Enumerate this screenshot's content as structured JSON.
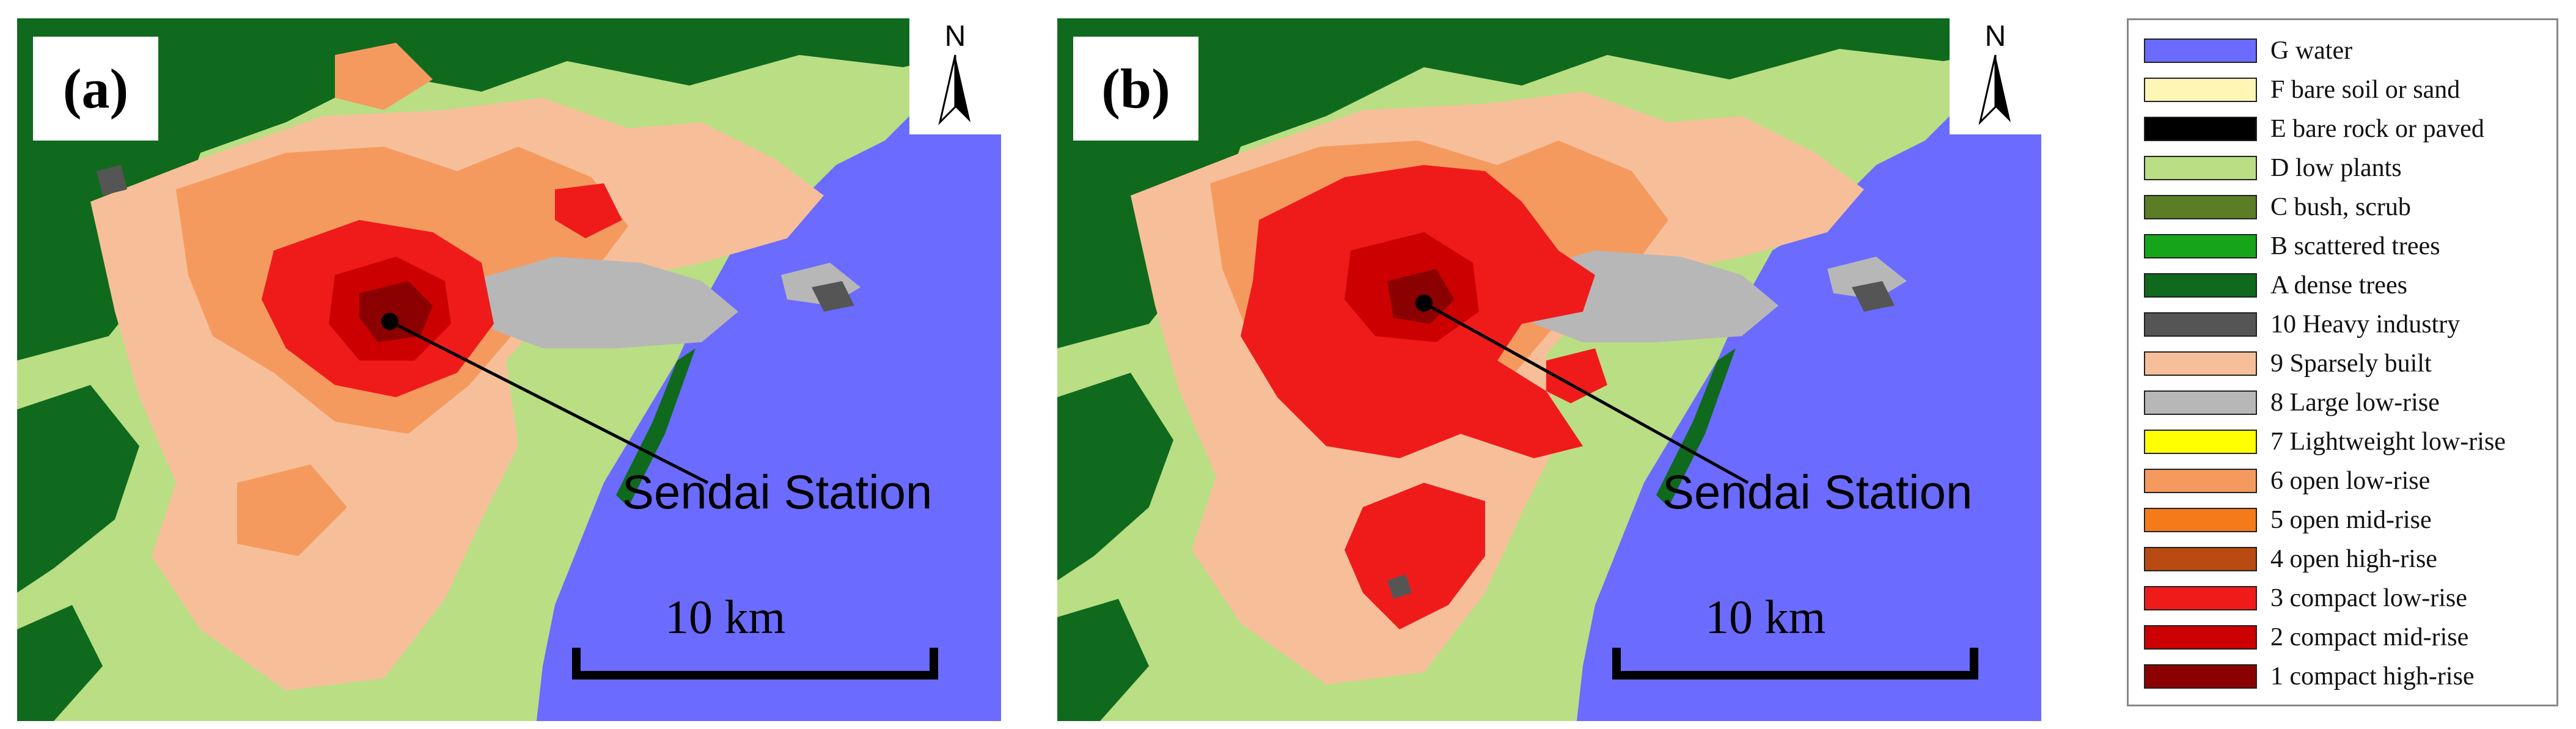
{
  "panels": [
    {
      "label": "(a)",
      "north": "N",
      "station": "Sendai Station",
      "scale": "10 km"
    },
    {
      "label": "(b)",
      "north": "N",
      "station": "Sendai Station",
      "scale": "10 km"
    }
  ],
  "colors": {
    "water": "#6b6bff",
    "dense_trees": "#0f6a1d",
    "low_plants": "#b9de84",
    "sparsely_built": "#f7bf99",
    "open_low_rise": "#f59a5e",
    "large_low_rise": "#b7b7b7",
    "compact_low_rise": "#ef1b1b",
    "compact_mid_rise": "#cc0000",
    "compact_high_rise": "#8b0000",
    "heavy_industry": "#555555"
  },
  "legend": [
    {
      "label": "G water",
      "color": "#6b6bff"
    },
    {
      "label": "F bare soil or sand",
      "color": "#fff5b5"
    },
    {
      "label": "E bare rock or paved",
      "color": "#000000"
    },
    {
      "label": "D low plants",
      "color": "#b9de84"
    },
    {
      "label": "C bush, scrub",
      "color": "#5a7d26"
    },
    {
      "label": "B scattered trees",
      "color": "#16a51a"
    },
    {
      "label": "A dense trees",
      "color": "#0f6a1d"
    },
    {
      "label": "10 Heavy industry",
      "color": "#555555"
    },
    {
      "label": "9 Sparsely built",
      "color": "#f7bf99"
    },
    {
      "label": "8 Large low-rise",
      "color": "#b7b7b7"
    },
    {
      "label": "7 Lightweight low-rise",
      "color": "#ffff00"
    },
    {
      "label": "6 open low-rise",
      "color": "#f59a5e"
    },
    {
      "label": "5 open mid-rise",
      "color": "#f57a1a"
    },
    {
      "label": "4 open high-rise",
      "color": "#b94a12"
    },
    {
      "label": "3 compact low-rise",
      "color": "#ef1b1b"
    },
    {
      "label": "2 compact mid-rise",
      "color": "#cc0000"
    },
    {
      "label": "1 compact high-rise",
      "color": "#8b0000"
    }
  ]
}
